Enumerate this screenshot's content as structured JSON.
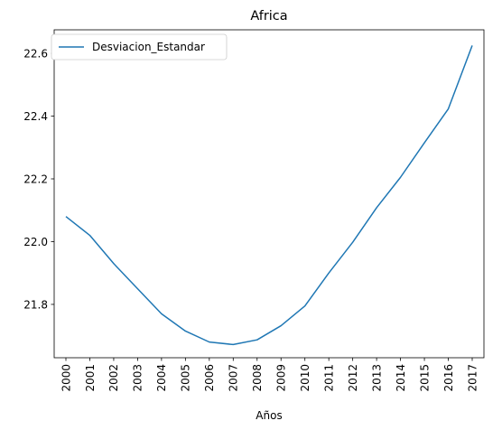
{
  "chart_data": {
    "type": "line",
    "title": "Africa",
    "xlabel": "Años",
    "ylabel": "",
    "x": [
      "2000",
      "2001",
      "2002",
      "2003",
      "2004",
      "2005",
      "2006",
      "2007",
      "2008",
      "2009",
      "2010",
      "2011",
      "2012",
      "2013",
      "2014",
      "2015",
      "2016",
      "2017"
    ],
    "series": [
      {
        "name": "Desviacion_Estandar",
        "color": "#1f77b4",
        "values": [
          22.08,
          22.02,
          21.93,
          21.85,
          21.77,
          21.715,
          21.68,
          21.672,
          21.687,
          21.732,
          21.795,
          21.9,
          21.998,
          22.108,
          22.205,
          22.315,
          22.423,
          22.625
        ]
      }
    ],
    "ylim": [
      21.63,
      22.675
    ],
    "yticks": [
      21.8,
      22.0,
      22.2,
      22.4,
      22.6
    ],
    "ytick_labels": [
      "21.8",
      "22.0",
      "22.2",
      "22.4",
      "22.6"
    ],
    "x_tick_rotation": 90,
    "grid": false,
    "legend_position": "upper-left"
  }
}
